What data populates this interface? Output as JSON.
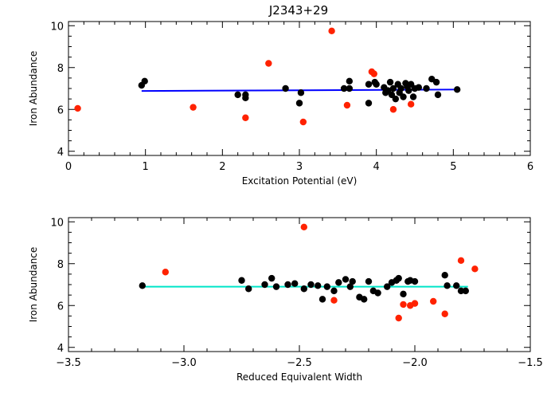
{
  "title": "J2343+29",
  "colors": {
    "kept": "#000000",
    "rejected": "#ff2200",
    "fit_top": "#0000ff",
    "fit_bottom": "#00e5c8"
  },
  "chart_data": [
    {
      "type": "scatter",
      "xlabel": "Excitation Potential (eV)",
      "ylabel": "Iron Abundance",
      "xlim": [
        0,
        6
      ],
      "ylim": [
        3.8,
        10.2
      ],
      "xticks": [
        0,
        1,
        2,
        3,
        4,
        5,
        6
      ],
      "xtick_labels": [
        "0",
        "1",
        "2",
        "3",
        "4",
        "5",
        "6"
      ],
      "yticks": [
        4,
        6,
        8,
        10
      ],
      "ytick_labels": [
        "4",
        "6",
        "8",
        "10"
      ],
      "grid": false,
      "series": [
        {
          "role": "kept",
          "color": "#000000",
          "points": [
            [
              0.95,
              7.15
            ],
            [
              0.99,
              7.35
            ],
            [
              2.2,
              6.7
            ],
            [
              2.3,
              6.7
            ],
            [
              2.3,
              6.55
            ],
            [
              2.82,
              7.0
            ],
            [
              3.0,
              6.3
            ],
            [
              3.02,
              6.8
            ],
            [
              3.58,
              7.0
            ],
            [
              3.65,
              7.0
            ],
            [
              3.65,
              7.35
            ],
            [
              3.9,
              6.3
            ],
            [
              3.9,
              7.2
            ],
            [
              3.98,
              7.3
            ],
            [
              4.0,
              7.2
            ],
            [
              4.1,
              7.05
            ],
            [
              4.12,
              6.8
            ],
            [
              4.15,
              6.9
            ],
            [
              4.18,
              7.3
            ],
            [
              4.2,
              6.7
            ],
            [
              4.22,
              7.0
            ],
            [
              4.25,
              6.5
            ],
            [
              4.28,
              7.2
            ],
            [
              4.3,
              6.8
            ],
            [
              4.32,
              7.0
            ],
            [
              4.35,
              6.6
            ],
            [
              4.38,
              7.25
            ],
            [
              4.4,
              7.1
            ],
            [
              4.42,
              6.9
            ],
            [
              4.45,
              7.2
            ],
            [
              4.48,
              6.6
            ],
            [
              4.5,
              7.0
            ],
            [
              4.55,
              7.05
            ],
            [
              4.65,
              7.0
            ],
            [
              4.72,
              7.45
            ],
            [
              4.78,
              7.3
            ],
            [
              4.8,
              6.7
            ],
            [
              5.05,
              6.95
            ]
          ]
        },
        {
          "role": "rejected",
          "color": "#ff2200",
          "points": [
            [
              0.12,
              6.05
            ],
            [
              1.62,
              6.1
            ],
            [
              2.3,
              5.6
            ],
            [
              2.6,
              8.2
            ],
            [
              3.05,
              5.4
            ],
            [
              3.42,
              9.75
            ],
            [
              3.62,
              6.2
            ],
            [
              3.94,
              7.8
            ],
            [
              3.97,
              7.7
            ],
            [
              4.22,
              6.0
            ],
            [
              4.45,
              6.25
            ]
          ]
        }
      ],
      "fit": {
        "color": "#0000ff",
        "x": [
          0.95,
          5.07
        ],
        "y": [
          6.88,
          6.95
        ]
      }
    },
    {
      "type": "scatter",
      "xlabel": "Reduced Equivalent Width",
      "ylabel": "Iron Abundance",
      "xlim": [
        -3.5,
        -1.5
      ],
      "ylim": [
        3.8,
        10.2
      ],
      "xticks": [
        -3.5,
        -3.0,
        -2.5,
        -2.0,
        -1.5
      ],
      "xtick_labels": [
        "−3.5",
        "−3.0",
        "−2.5",
        "−2.0",
        "−1.5"
      ],
      "yticks": [
        4,
        6,
        8,
        10
      ],
      "ytick_labels": [
        "4",
        "6",
        "8",
        "10"
      ],
      "grid": false,
      "series": [
        {
          "role": "kept",
          "color": "#000000",
          "points": [
            [
              -3.18,
              6.95
            ],
            [
              -2.75,
              7.2
            ],
            [
              -2.72,
              6.8
            ],
            [
              -2.65,
              7.0
            ],
            [
              -2.62,
              7.3
            ],
            [
              -2.6,
              6.9
            ],
            [
              -2.55,
              7.0
            ],
            [
              -2.52,
              7.05
            ],
            [
              -2.48,
              6.8
            ],
            [
              -2.45,
              7.0
            ],
            [
              -2.42,
              6.95
            ],
            [
              -2.4,
              6.3
            ],
            [
              -2.38,
              6.9
            ],
            [
              -2.35,
              6.7
            ],
            [
              -2.33,
              7.1
            ],
            [
              -2.3,
              7.25
            ],
            [
              -2.28,
              6.9
            ],
            [
              -2.27,
              7.15
            ],
            [
              -2.24,
              6.4
            ],
            [
              -2.22,
              6.3
            ],
            [
              -2.2,
              7.15
            ],
            [
              -2.18,
              6.7
            ],
            [
              -2.16,
              6.6
            ],
            [
              -2.12,
              6.9
            ],
            [
              -2.1,
              7.1
            ],
            [
              -2.08,
              7.2
            ],
            [
              -2.07,
              7.3
            ],
            [
              -2.05,
              6.55
            ],
            [
              -2.03,
              7.15
            ],
            [
              -2.02,
              7.2
            ],
            [
              -2.0,
              7.15
            ],
            [
              -1.87,
              7.45
            ],
            [
              -1.86,
              6.95
            ],
            [
              -1.82,
              6.95
            ],
            [
              -1.8,
              6.7
            ],
            [
              -1.78,
              6.7
            ]
          ]
        },
        {
          "role": "rejected",
          "color": "#ff2200",
          "points": [
            [
              -3.08,
              7.6
            ],
            [
              -2.48,
              9.75
            ],
            [
              -2.35,
              6.25
            ],
            [
              -2.07,
              5.4
            ],
            [
              -2.05,
              6.05
            ],
            [
              -2.02,
              6.0
            ],
            [
              -2.0,
              6.1
            ],
            [
              -1.92,
              6.2
            ],
            [
              -1.87,
              5.6
            ],
            [
              -1.8,
              8.15
            ],
            [
              -1.74,
              7.75
            ]
          ]
        }
      ],
      "fit": {
        "color": "#00e5c8",
        "x": [
          -3.18,
          -1.77
        ],
        "y": [
          6.9,
          6.9
        ]
      }
    }
  ]
}
